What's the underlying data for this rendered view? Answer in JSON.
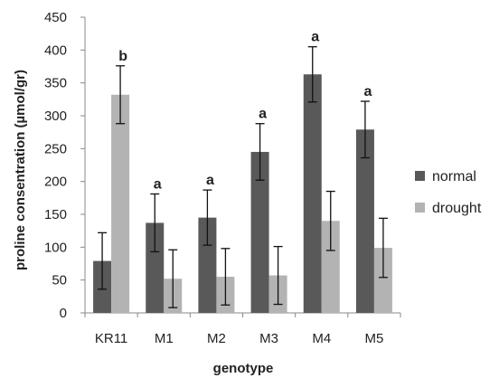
{
  "chart_data": {
    "type": "bar",
    "title": "",
    "xlabel": "genotype",
    "ylabel": "proline consentration (µmol/gr)",
    "categories": [
      "KR11",
      "M1",
      "M2",
      "M3",
      "M4",
      "M5"
    ],
    "ylim": [
      0,
      450
    ],
    "yticks": [
      0,
      50,
      100,
      150,
      200,
      250,
      300,
      350,
      400,
      450
    ],
    "grid": false,
    "legend_position": "right",
    "series": [
      {
        "name": "normal",
        "color": "#595959",
        "values": [
          79,
          137,
          145,
          245,
          363,
          279
        ],
        "errors": [
          43,
          44,
          42,
          43,
          42,
          43
        ],
        "labels": [
          "",
          "a",
          "a",
          "a",
          "a",
          "a"
        ]
      },
      {
        "name": "drought",
        "color": "#b3b3b3",
        "values": [
          332,
          52,
          55,
          57,
          140,
          99
        ],
        "errors": [
          44,
          44,
          43,
          44,
          45,
          45
        ],
        "labels": [
          "b",
          "",
          "",
          "",
          "",
          ""
        ]
      }
    ]
  }
}
